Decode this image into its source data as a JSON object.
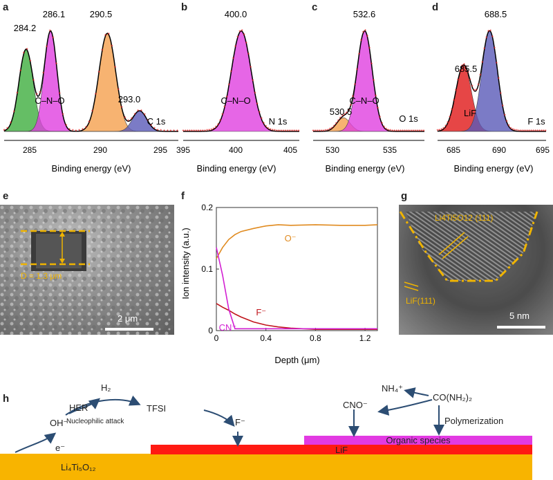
{
  "panels": {
    "a": {
      "letter": "a",
      "element": "C 1s",
      "xlabel": "Binding energy (eV)",
      "ticks": [
        "285",
        "290",
        "295"
      ],
      "peaks": [
        "284.2",
        "286.1",
        "290.5",
        "293.0"
      ],
      "species": "C–N–O",
      "chart_data": {
        "type": "line",
        "xlim": [
          282.5,
          296
        ],
        "x": [
          284.2,
          286.1,
          290.5,
          293.0
        ],
        "series": [
          {
            "values": [
              0.72,
              0.88,
              0.86,
              0.18
            ]
          }
        ]
      }
    },
    "b": {
      "letter": "b",
      "element": "N 1s",
      "xlabel": "Binding energy (eV)",
      "ticks": [
        "395",
        "400",
        "405"
      ],
      "peaks": [
        "400.0"
      ],
      "species": "C–N–O",
      "chart_data": {
        "type": "line",
        "xlim": [
          395,
          405
        ],
        "x": [
          400.0
        ],
        "series": [
          {
            "values": [
              0.88
            ]
          }
        ]
      }
    },
    "c": {
      "letter": "c",
      "element": "O 1s",
      "xlabel": "Binding energy (eV)",
      "ticks": [
        "530",
        "535"
      ],
      "peaks": [
        "530.5",
        "532.6"
      ],
      "species": "C–N–O",
      "chart_data": {
        "type": "line",
        "xlim": [
          527.5,
          538.5
        ],
        "x": [
          530.5,
          532.6
        ],
        "series": [
          {
            "values": [
              0.12,
              0.88
            ]
          }
        ]
      }
    },
    "d": {
      "letter": "d",
      "element": "F 1s",
      "xlabel": "Binding energy (eV)",
      "ticks": [
        "685",
        "690",
        "695"
      ],
      "peaks": [
        "685.5",
        "688.5"
      ],
      "species": "LiF",
      "chart_data": {
        "type": "line",
        "xlim": [
          682.5,
          695
        ],
        "x": [
          685.5,
          688.5
        ],
        "series": [
          {
            "values": [
              0.58,
              0.88
            ]
          }
        ]
      }
    },
    "e": {
      "letter": "e",
      "depth_label": "D = 1.3 μm",
      "scale": "2 μm"
    },
    "f": {
      "letter": "f",
      "xlabel": "Depth (μm)",
      "ylabel": "Ion intensity (a.u.)",
      "xticks": [
        "0",
        "0.4",
        "0.8",
        "1.2"
      ],
      "yticks": [
        "0",
        "0.1",
        "0.2"
      ],
      "labels": {
        "o": "O⁻",
        "f": "F⁻",
        "cn": "CN⁻"
      },
      "colors": {
        "o": "#e08a1e",
        "f": "#c0141b",
        "cn": "#d21fd2"
      },
      "chart_data": {
        "type": "line",
        "xlim": [
          0,
          1.3
        ],
        "ylim": [
          0,
          0.2
        ],
        "x": [
          0,
          0.05,
          0.1,
          0.15,
          0.2,
          0.3,
          0.4,
          0.5,
          0.6,
          0.8,
          1.0,
          1.2,
          1.3
        ],
        "series": [
          {
            "name": "O⁻",
            "values": [
              0.117,
              0.135,
              0.148,
              0.156,
              0.161,
              0.166,
              0.17,
              0.172,
              0.171,
              0.172,
              0.171,
              0.171,
              0.172
            ]
          },
          {
            "name": "F⁻",
            "values": [
              0.044,
              0.038,
              0.033,
              0.027,
              0.022,
              0.014,
              0.009,
              0.006,
              0.004,
              0.002,
              0.002,
              0.002,
              0.002
            ]
          },
          {
            "name": "CN⁻",
            "values": [
              0.135,
              0.09,
              0.035,
              0.003,
              0.003,
              0.003,
              0.003,
              0.003,
              0.003,
              0.003,
              0.003,
              0.003,
              0.003
            ]
          }
        ]
      }
    },
    "g": {
      "letter": "g",
      "top_label": "Li4Ti5O12 (111)",
      "bottom_label": "LiF(111)",
      "scale": "5 nm"
    },
    "h": {
      "letter": "h",
      "h2": "H₂",
      "her": "HER",
      "oh": "OH⁻",
      "nucleophilic": "Nucleophilic attack",
      "tfsi": "TFSI",
      "f": "F⁻",
      "e": "e⁻",
      "cno": "CNO⁻",
      "nh4": "NH₄⁺",
      "urea": "CO(NH₂)₂",
      "polymerization": "Polymerization",
      "organic": "Organic species",
      "lif": "LiF",
      "lto": "Li₄Ti₅O₁₂"
    }
  }
}
